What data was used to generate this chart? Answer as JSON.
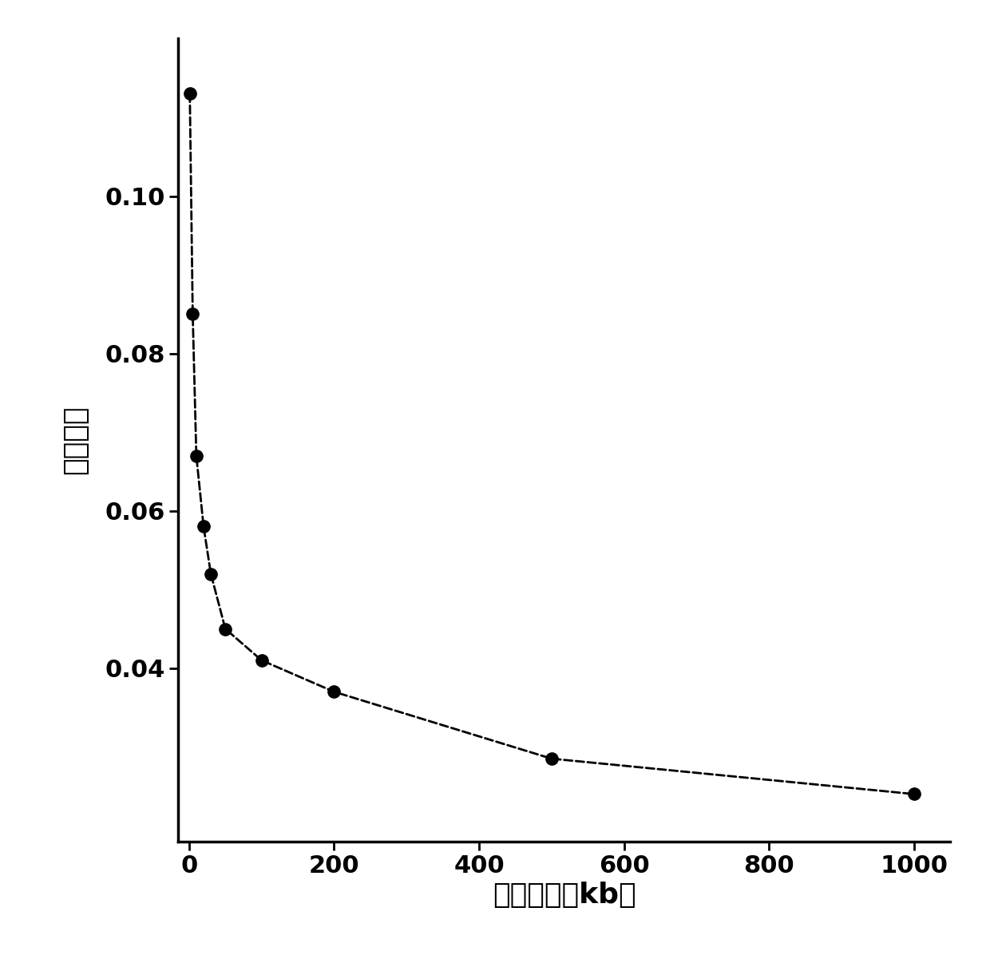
{
  "x": [
    1,
    5,
    10,
    20,
    30,
    50,
    100,
    200,
    500,
    1000
  ],
  "y": [
    0.113,
    0.085,
    0.067,
    0.058,
    0.052,
    0.045,
    0.041,
    0.037,
    0.0285,
    0.024
  ],
  "xlabel": "窗口大小（kb）",
  "ylabel": "变异系数",
  "xlim": [
    -15,
    1050
  ],
  "ylim": [
    0.018,
    0.12
  ],
  "xticks": [
    0,
    200,
    400,
    600,
    800,
    1000
  ],
  "yticks": [
    0.04,
    0.06,
    0.08,
    0.1
  ],
  "ytick_labels": [
    "0.04",
    "0.06",
    "0.08",
    "0.10"
  ],
  "line_color": "#000000",
  "marker_color": "#000000",
  "marker_size": 11,
  "line_width": 2.0,
  "background_color": "#ffffff",
  "xlabel_fontsize": 26,
  "ylabel_fontsize": 26,
  "tick_fontsize": 22
}
